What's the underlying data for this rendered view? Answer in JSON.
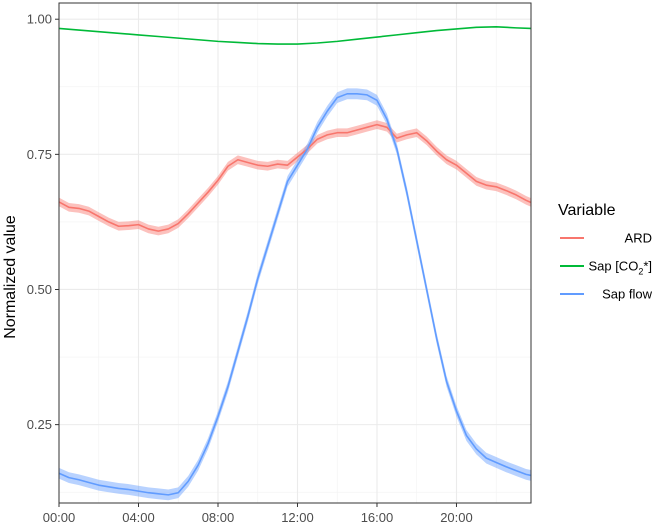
{
  "chart_data": {
    "type": "line",
    "xlabel": "",
    "ylabel": "Normalized value",
    "xlim": [
      0,
      23.75
    ],
    "ylim": [
      0.105,
      1.03
    ],
    "x_ticks": [
      {
        "value": 0,
        "label": "00:00"
      },
      {
        "value": 4,
        "label": "04:00"
      },
      {
        "value": 8,
        "label": "08:00"
      },
      {
        "value": 12,
        "label": "12:00"
      },
      {
        "value": 16,
        "label": "16:00"
      },
      {
        "value": 20,
        "label": "20:00"
      }
    ],
    "y_ticks": [
      {
        "value": 0.25,
        "label": "0.25"
      },
      {
        "value": 0.5,
        "label": "0.50"
      },
      {
        "value": 0.75,
        "label": "0.75"
      },
      {
        "value": 1.0,
        "label": "1.00"
      }
    ],
    "grid": true,
    "legend": {
      "title": "Variable",
      "position": "right",
      "items": [
        {
          "key": "ard",
          "label": "ARD"
        },
        {
          "key": "sapco2",
          "label_main": "Sap [CO",
          "label_sub": "2",
          "label_end": "*]"
        },
        {
          "key": "sapflow",
          "label": "Sap flow"
        }
      ]
    },
    "series": [
      {
        "key": "ard",
        "color": "#F8766D",
        "band": 0.008,
        "x": [
          0,
          0.5,
          1,
          1.5,
          2,
          2.5,
          3,
          3.5,
          4,
          4.5,
          5,
          5.5,
          6,
          6.5,
          7,
          7.5,
          8,
          8.5,
          9,
          9.5,
          10,
          10.5,
          11,
          11.5,
          12,
          12.5,
          13,
          13.5,
          14,
          14.5,
          15,
          15.5,
          16,
          16.5,
          17,
          17.5,
          18,
          18.5,
          19,
          19.5,
          20,
          20.5,
          21,
          21.5,
          22,
          22.5,
          23,
          23.5,
          23.75
        ],
        "values": [
          0.662,
          0.652,
          0.65,
          0.645,
          0.635,
          0.625,
          0.617,
          0.618,
          0.62,
          0.612,
          0.608,
          0.612,
          0.622,
          0.64,
          0.66,
          0.68,
          0.702,
          0.728,
          0.74,
          0.735,
          0.73,
          0.728,
          0.732,
          0.73,
          0.745,
          0.76,
          0.778,
          0.786,
          0.79,
          0.79,
          0.795,
          0.8,
          0.805,
          0.8,
          0.78,
          0.786,
          0.79,
          0.775,
          0.756,
          0.74,
          0.73,
          0.715,
          0.7,
          0.693,
          0.69,
          0.683,
          0.675,
          0.665,
          0.661
        ]
      },
      {
        "key": "sapco2",
        "color": "#00BA38",
        "band": 0,
        "x": [
          0,
          1,
          2,
          3,
          4,
          5,
          6,
          7,
          8,
          9,
          10,
          11,
          12,
          13,
          14,
          15,
          16,
          17,
          18,
          19,
          20,
          21,
          22,
          23,
          23.75
        ],
        "values": [
          0.983,
          0.98,
          0.977,
          0.974,
          0.971,
          0.968,
          0.965,
          0.962,
          0.959,
          0.957,
          0.955,
          0.954,
          0.954,
          0.956,
          0.959,
          0.963,
          0.967,
          0.971,
          0.975,
          0.979,
          0.982,
          0.985,
          0.986,
          0.984,
          0.983
        ]
      },
      {
        "key": "sapflow",
        "color": "#619CFF",
        "band": 0.01,
        "x": [
          0,
          0.5,
          1,
          1.5,
          2,
          2.5,
          3,
          3.5,
          4,
          4.5,
          5,
          5.5,
          6,
          6.5,
          7,
          7.5,
          8,
          8.5,
          9,
          9.5,
          10,
          10.5,
          11,
          11.5,
          12,
          12.5,
          13,
          13.5,
          14,
          14.5,
          15,
          15.5,
          16,
          16.5,
          17,
          17.5,
          18,
          18.5,
          19,
          19.5,
          20,
          20.5,
          21,
          21.5,
          22,
          22.5,
          23,
          23.5,
          23.75
        ],
        "values": [
          0.16,
          0.152,
          0.148,
          0.143,
          0.138,
          0.135,
          0.132,
          0.13,
          0.127,
          0.124,
          0.122,
          0.12,
          0.124,
          0.145,
          0.175,
          0.215,
          0.265,
          0.32,
          0.385,
          0.45,
          0.52,
          0.58,
          0.64,
          0.7,
          0.73,
          0.76,
          0.8,
          0.83,
          0.855,
          0.862,
          0.862,
          0.86,
          0.85,
          0.815,
          0.76,
          0.68,
          0.59,
          0.5,
          0.41,
          0.33,
          0.275,
          0.23,
          0.205,
          0.188,
          0.18,
          0.172,
          0.165,
          0.158,
          0.156
        ]
      }
    ]
  }
}
